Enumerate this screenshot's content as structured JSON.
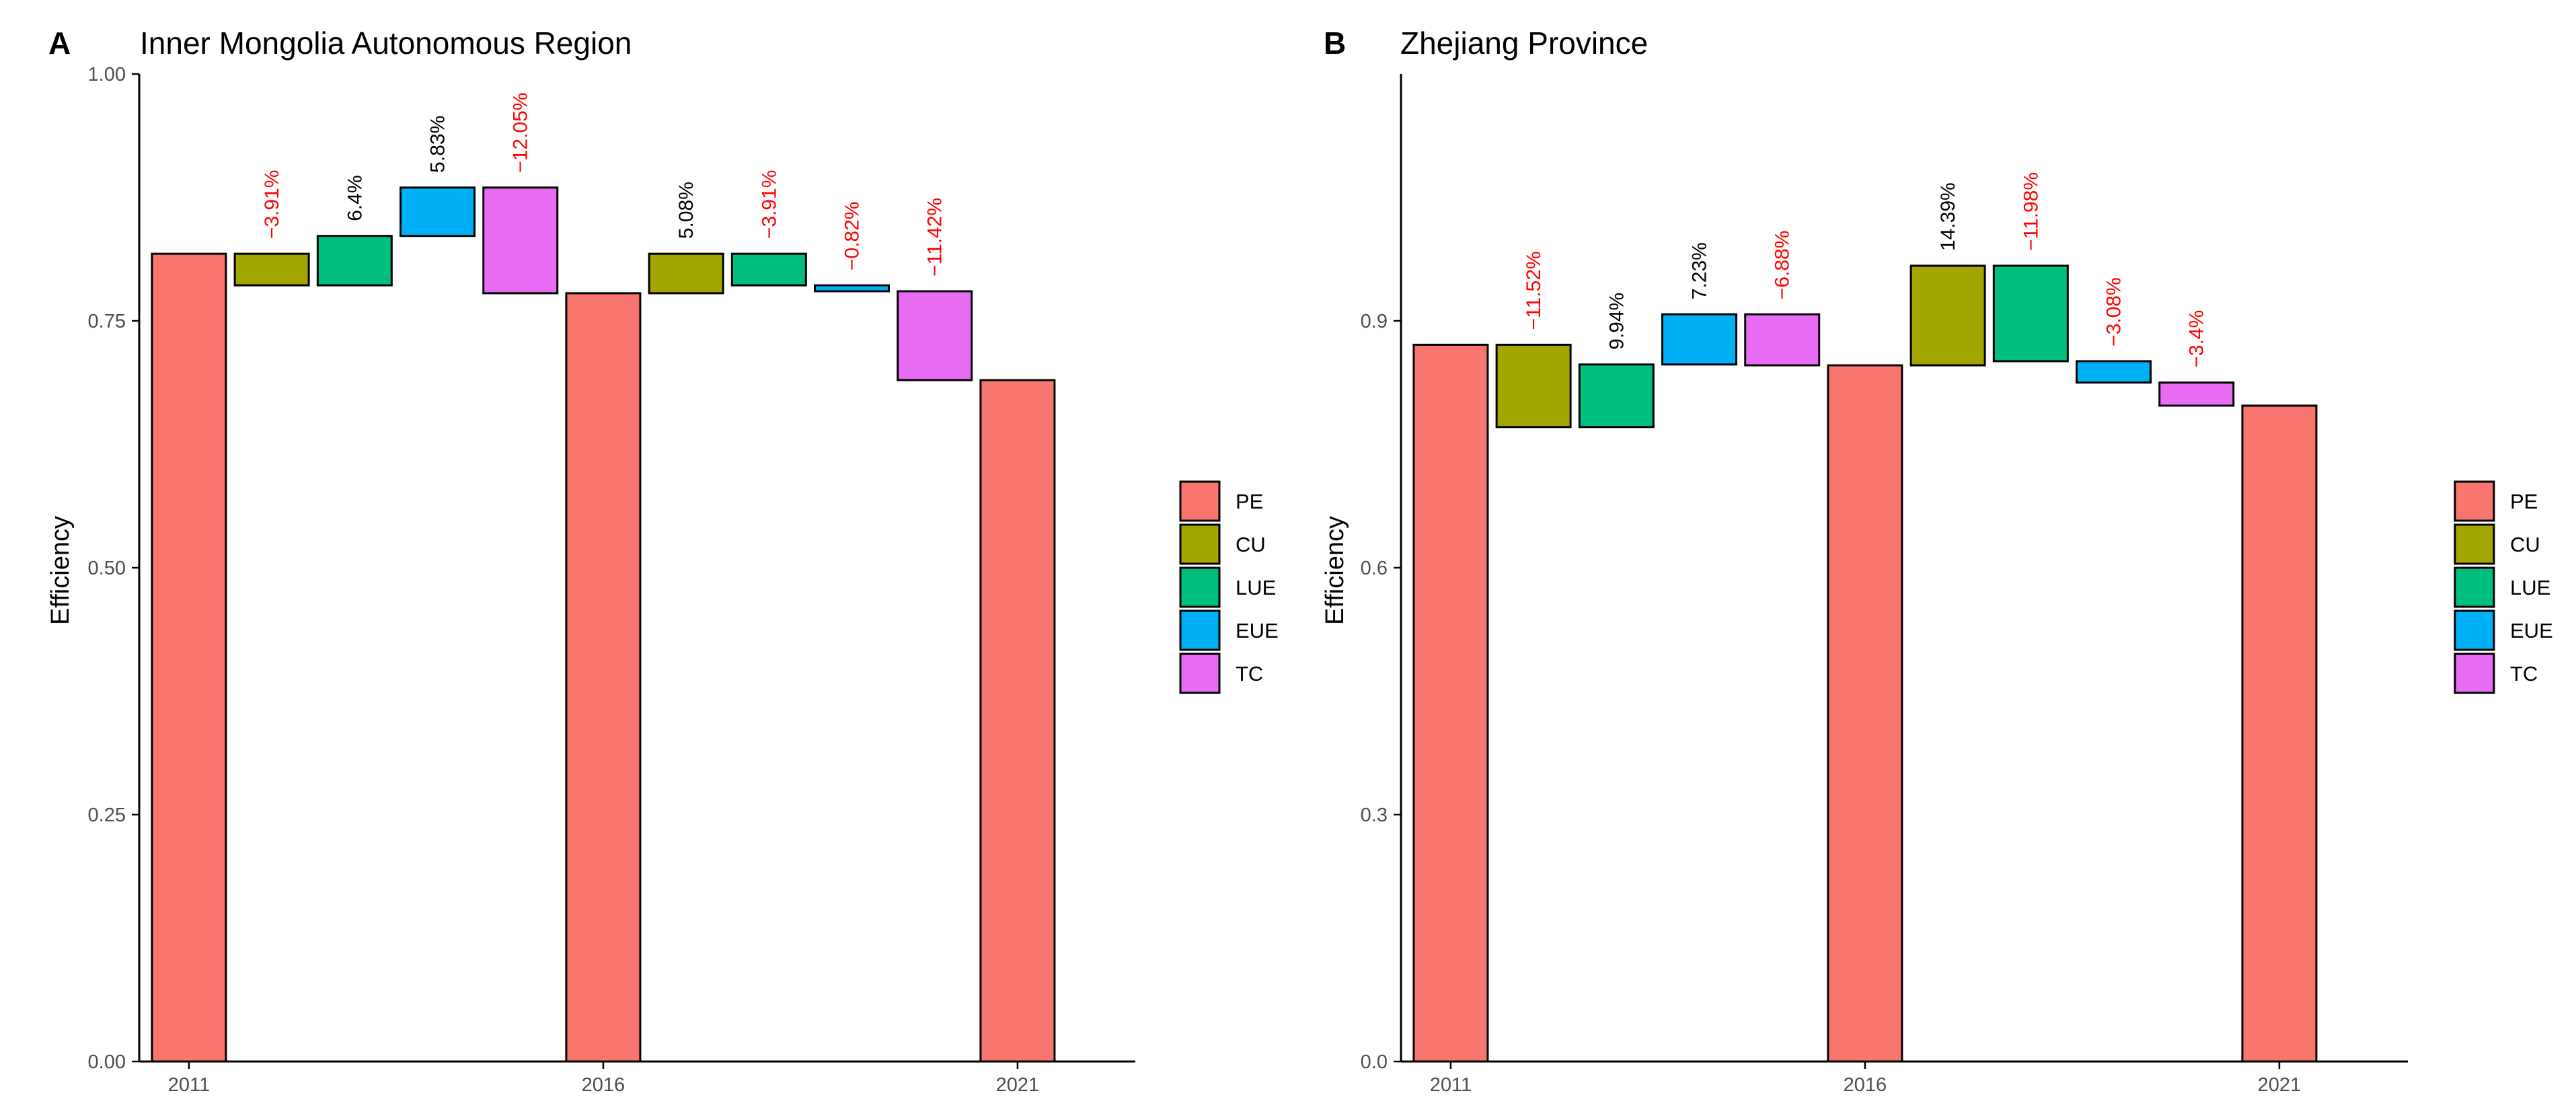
{
  "chart_data": [
    {
      "type": "waterfall",
      "panel": "A",
      "title": "Inner Mongolia Autonomous Region",
      "xlabel": "",
      "ylabel": "Efficiency",
      "ylim": [
        0,
        1.0
      ],
      "yticks": [
        "0.00",
        "0.25",
        "0.50",
        "0.75",
        "1.00"
      ],
      "ytick_values": [
        0,
        0.25,
        0.5,
        0.75,
        1.0
      ],
      "xticks": [
        "2011",
        "2016",
        "2021"
      ],
      "xtick_positions": [
        1,
        6,
        11
      ],
      "xlim": [
        0.4,
        11.9
      ],
      "legend": [
        "PE",
        "CU",
        "LUE",
        "EUE",
        "TC"
      ],
      "bars": [
        {
          "pos": 1,
          "component": "PE",
          "start": 0,
          "end": 0.818,
          "label": ""
        },
        {
          "pos": 2,
          "component": "CU",
          "start": 0.818,
          "end": 0.786,
          "label": "−3.91%"
        },
        {
          "pos": 3,
          "component": "LUE",
          "start": 0.786,
          "end": 0.836,
          "label": "6.4%"
        },
        {
          "pos": 4,
          "component": "EUE",
          "start": 0.836,
          "end": 0.885,
          "label": "5.83%"
        },
        {
          "pos": 5,
          "component": "TC",
          "start": 0.885,
          "end": 0.778,
          "label": "−12.05%"
        },
        {
          "pos": 6,
          "component": "PE",
          "start": 0,
          "end": 0.778,
          "label": ""
        },
        {
          "pos": 7,
          "component": "CU",
          "start": 0.778,
          "end": 0.818,
          "label": "5.08%"
        },
        {
          "pos": 8,
          "component": "LUE",
          "start": 0.818,
          "end": 0.786,
          "label": "−3.91%"
        },
        {
          "pos": 9,
          "component": "EUE",
          "start": 0.786,
          "end": 0.78,
          "label": "−0.82%"
        },
        {
          "pos": 10,
          "component": "TC",
          "start": 0.78,
          "end": 0.69,
          "label": "−11.42%"
        },
        {
          "pos": 11,
          "component": "PE",
          "start": 0,
          "end": 0.69,
          "label": ""
        }
      ]
    },
    {
      "type": "waterfall",
      "panel": "B",
      "title": "Zhejiang Province",
      "xlabel": "",
      "ylabel": "Efficiency",
      "ylim": [
        0,
        1.2
      ],
      "yticks": [
        "0.0",
        "0.3",
        "0.6",
        "0.9"
      ],
      "ytick_values": [
        0,
        0.3,
        0.6,
        0.9
      ],
      "xticks": [
        "2011",
        "2016",
        "2021"
      ],
      "xtick_positions": [
        1,
        6,
        11
      ],
      "xlim": [
        0.4,
        11.9
      ],
      "legend": [
        "PE",
        "CU",
        "LUE",
        "EUE",
        "TC"
      ],
      "bars": [
        {
          "pos": 1,
          "component": "PE",
          "start": 0,
          "end": 0.871,
          "label": ""
        },
        {
          "pos": 2,
          "component": "CU",
          "start": 0.871,
          "end": 0.771,
          "label": "−11.52%"
        },
        {
          "pos": 3,
          "component": "LUE",
          "start": 0.771,
          "end": 0.847,
          "label": "9.94%"
        },
        {
          "pos": 4,
          "component": "EUE",
          "start": 0.847,
          "end": 0.908,
          "label": "7.23%"
        },
        {
          "pos": 5,
          "component": "TC",
          "start": 0.908,
          "end": 0.846,
          "label": "−6.88%"
        },
        {
          "pos": 6,
          "component": "PE",
          "start": 0,
          "end": 0.846,
          "label": ""
        },
        {
          "pos": 7,
          "component": "CU",
          "start": 0.846,
          "end": 0.967,
          "label": "14.39%"
        },
        {
          "pos": 8,
          "component": "LUE",
          "start": 0.967,
          "end": 0.851,
          "label": "−11.98%"
        },
        {
          "pos": 9,
          "component": "EUE",
          "start": 0.851,
          "end": 0.825,
          "label": "−3.08%"
        },
        {
          "pos": 10,
          "component": "TC",
          "start": 0.825,
          "end": 0.797,
          "label": "−3.4%"
        },
        {
          "pos": 11,
          "component": "PE",
          "start": 0,
          "end": 0.797,
          "label": ""
        }
      ]
    }
  ],
  "colors": {
    "PE": "#F8766D",
    "CU": "#A3A500",
    "LUE": "#00BF7D",
    "EUE": "#00B0F6",
    "TC": "#E76BF3",
    "negative_label": "#ff0000",
    "positive_label": "#000000",
    "axis": "#000000",
    "tick_label": "#4d4d4d"
  }
}
